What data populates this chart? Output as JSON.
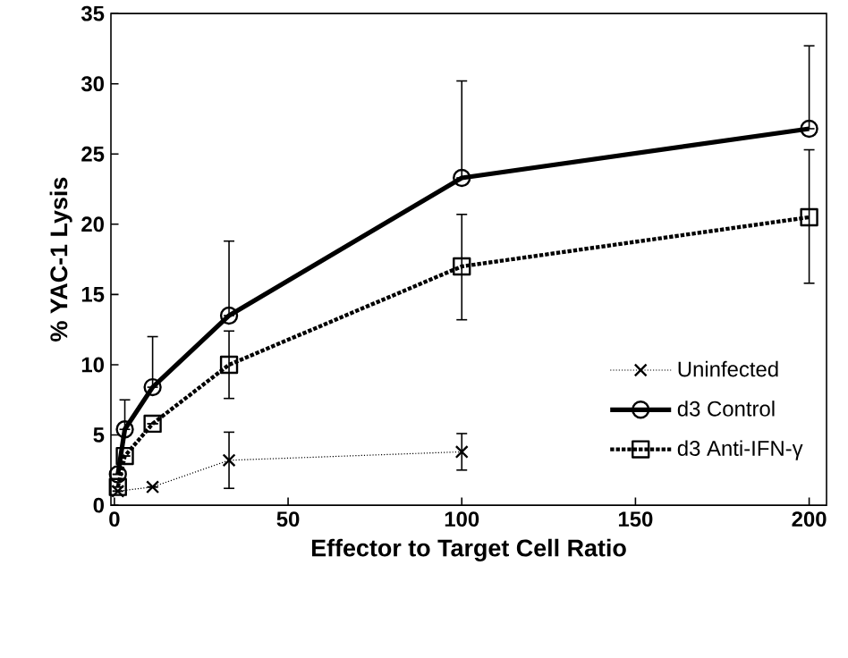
{
  "chart_data": {
    "type": "line",
    "xlabel": "Effector to Target Cell Ratio",
    "ylabel": "% YAC-1 Lysis",
    "xlim": [
      -1,
      205
    ],
    "ylim": [
      0,
      35
    ],
    "xticks": [
      0,
      50,
      100,
      150,
      200
    ],
    "yticks": [
      0,
      5,
      10,
      15,
      20,
      25,
      30,
      35
    ],
    "grid": false,
    "legend": "bottom right",
    "series": [
      {
        "name": "Uninfected",
        "color": "#000000",
        "marker": "cross",
        "line_style": "dotted",
        "x": [
          1,
          11,
          33,
          100
        ],
        "values": [
          1.0,
          1.3,
          3.2,
          3.8
        ],
        "errors": [
          null,
          null,
          2.0,
          1.3
        ]
      },
      {
        "name": "d3 Control",
        "color": "#000000",
        "marker": "circle",
        "line_style": "solid",
        "x": [
          1,
          3,
          11,
          33,
          100,
          200
        ],
        "values": [
          2.2,
          5.4,
          8.4,
          13.5,
          23.3,
          26.8
        ],
        "errors": [
          null,
          [
            5.4,
            7.5
          ],
          [
            8.4,
            12.0
          ],
          [
            13.5,
            18.8
          ],
          [
            23.3,
            30.2
          ],
          [
            26.8,
            32.7
          ]
        ]
      },
      {
        "name": "d3 Anti-IFN-γ",
        "color": "#000000",
        "marker": "square",
        "line_style": "dotted",
        "x": [
          1,
          3,
          11,
          33,
          100,
          200
        ],
        "values": [
          1.3,
          3.5,
          5.8,
          10.0,
          17.0,
          20.5
        ],
        "errors": [
          null,
          null,
          null,
          [
            7.6,
            12.4
          ],
          [
            13.2,
            20.7
          ],
          [
            15.8,
            25.3
          ]
        ]
      }
    ]
  }
}
